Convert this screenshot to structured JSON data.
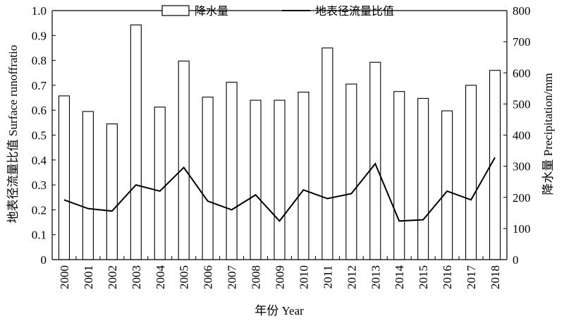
{
  "chart_data": {
    "type": "bar+line",
    "categories": [
      "2000",
      "2001",
      "2002",
      "2003",
      "2004",
      "2005",
      "2006",
      "2007",
      "2008",
      "2009",
      "2010",
      "2011",
      "2012",
      "2013",
      "2014",
      "2015",
      "2016",
      "2017",
      "2018"
    ],
    "series": [
      {
        "name": "降水量",
        "type": "bar",
        "axis": "right",
        "values": [
          526,
          476,
          436,
          754,
          490,
          638,
          522,
          570,
          512,
          512,
          538,
          680,
          564,
          634,
          540,
          518,
          478,
          560,
          608
        ]
      },
      {
        "name": "地表径流量比值",
        "type": "line",
        "axis": "left",
        "values": [
          0.24,
          0.205,
          0.195,
          0.3,
          0.275,
          0.37,
          0.235,
          0.2,
          0.26,
          0.155,
          0.28,
          0.245,
          0.265,
          0.385,
          0.155,
          0.16,
          0.275,
          0.24,
          0.41
        ]
      }
    ],
    "xlabel": "年份 Year",
    "ylabel_left": "地表径流量比值 Surface runoffratio",
    "ylabel_right": "降水量 Precipitation/mm",
    "ylim_left": [
      0,
      1.0
    ],
    "ylim_right": [
      0,
      800
    ],
    "yticks_left": [
      "0",
      "0.1",
      "0.2",
      "0.3",
      "0.4",
      "0.5",
      "0.6",
      "0.7",
      "0.8",
      "0.9",
      "1.0"
    ],
    "yticks_right": [
      "0",
      "100",
      "200",
      "300",
      "400",
      "500",
      "600",
      "700",
      "800"
    ],
    "legend": {
      "position": "top",
      "items": [
        "降水量",
        "地表径流量比值"
      ]
    },
    "grid": false
  }
}
